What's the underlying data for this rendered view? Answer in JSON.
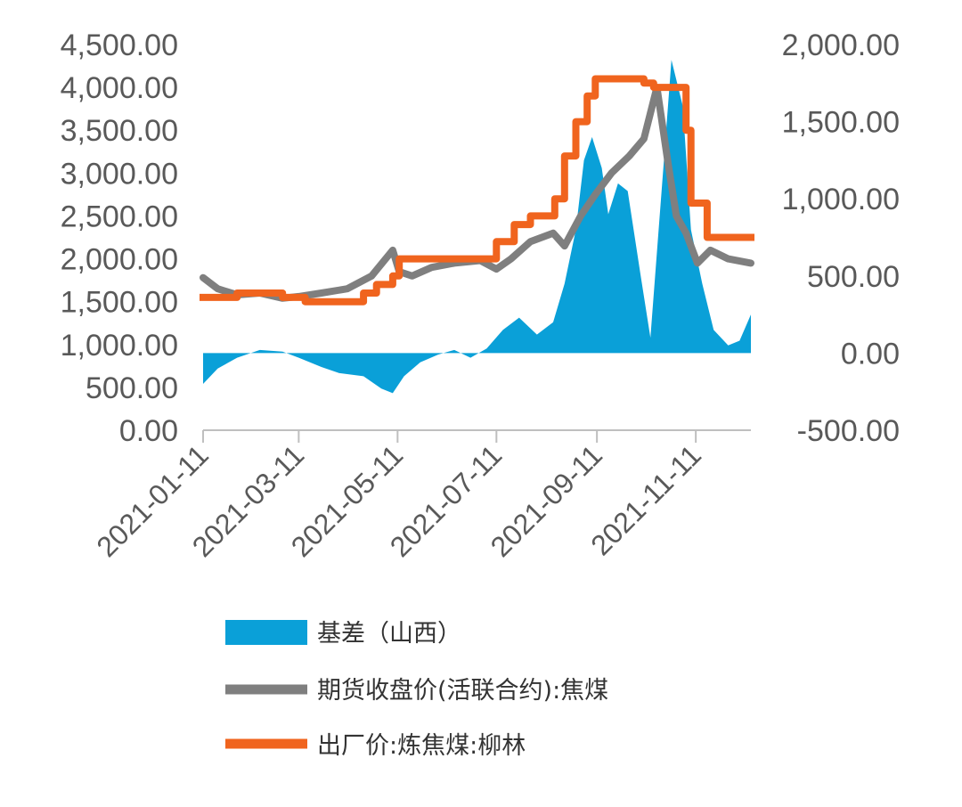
{
  "chart_data": {
    "type": "line",
    "title": "",
    "colors": {
      "basis": "#0aa0d8",
      "futures": "#7f7f7f",
      "factory": "#f0641e",
      "axis": "#bfbfbf",
      "text": "#595959"
    },
    "left_axis": {
      "range": [
        0,
        4500
      ],
      "ticks": [
        0,
        500,
        1000,
        1500,
        2000,
        2500,
        3000,
        3500,
        4000,
        4500
      ],
      "tick_labels": [
        "0.00",
        "500.00",
        "1,000.00",
        "1,500.00",
        "2,000.00",
        "2,500.00",
        "3,000.00",
        "3,500.00",
        "4,000.00",
        "4,500.00"
      ]
    },
    "right_axis": {
      "range": [
        -500,
        2000
      ],
      "ticks": [
        -500,
        0,
        500,
        1000,
        1500,
        2000
      ],
      "tick_labels": [
        "-500.00",
        "0.00",
        "500.00",
        "1,000.00",
        "1,500.00",
        "2,000.00"
      ]
    },
    "x_axis": {
      "range": [
        "2021-01-11",
        "2021-12-15"
      ],
      "tick_labels": [
        "2021-01-11",
        "2021-03-11",
        "2021-05-11",
        "2021-07-11",
        "2021-09-11",
        "2021-11-11"
      ]
    },
    "legend": {
      "position": "bottom",
      "entries": [
        "基差（山西）",
        "期货收盘价(活联合约):焦煤",
        "出厂价:炼焦煤:柳林"
      ]
    },
    "series": [
      {
        "name": "基差（山西）",
        "axis": "right",
        "style": "area",
        "points": [
          [
            "2021-01-11",
            -200
          ],
          [
            "2021-01-20",
            -100
          ],
          [
            "2021-02-01",
            -30
          ],
          [
            "2021-02-15",
            20
          ],
          [
            "2021-03-01",
            10
          ],
          [
            "2021-03-11",
            -30
          ],
          [
            "2021-03-25",
            -90
          ],
          [
            "2021-04-05",
            -130
          ],
          [
            "2021-04-20",
            -150
          ],
          [
            "2021-05-01",
            -230
          ],
          [
            "2021-05-08",
            -260
          ],
          [
            "2021-05-15",
            -150
          ],
          [
            "2021-05-25",
            -60
          ],
          [
            "2021-06-05",
            -10
          ],
          [
            "2021-06-15",
            20
          ],
          [
            "2021-06-25",
            -30
          ],
          [
            "2021-07-05",
            30
          ],
          [
            "2021-07-15",
            150
          ],
          [
            "2021-07-25",
            230
          ],
          [
            "2021-08-05",
            120
          ],
          [
            "2021-08-15",
            200
          ],
          [
            "2021-08-22",
            450
          ],
          [
            "2021-08-29",
            800
          ],
          [
            "2021-09-03",
            1250
          ],
          [
            "2021-09-08",
            1400
          ],
          [
            "2021-09-14",
            1200
          ],
          [
            "2021-09-18",
            900
          ],
          [
            "2021-09-24",
            1100
          ],
          [
            "2021-09-30",
            1050
          ],
          [
            "2021-10-08",
            500
          ],
          [
            "2021-10-14",
            100
          ],
          [
            "2021-10-22",
            1200
          ],
          [
            "2021-10-27",
            1900
          ],
          [
            "2021-11-03",
            1600
          ],
          [
            "2021-11-08",
            800
          ],
          [
            "2021-11-15",
            450
          ],
          [
            "2021-11-22",
            150
          ],
          [
            "2021-12-01",
            50
          ],
          [
            "2021-12-08",
            80
          ],
          [
            "2021-12-15",
            250
          ]
        ]
      },
      {
        "name": "期货收盘价(活联合约):焦煤",
        "axis": "left",
        "style": "line",
        "points": [
          [
            "2021-01-11",
            1780
          ],
          [
            "2021-01-20",
            1650
          ],
          [
            "2021-02-01",
            1580
          ],
          [
            "2021-02-15",
            1600
          ],
          [
            "2021-03-01",
            1540
          ],
          [
            "2021-03-11",
            1560
          ],
          [
            "2021-03-25",
            1600
          ],
          [
            "2021-04-10",
            1650
          ],
          [
            "2021-04-25",
            1800
          ],
          [
            "2021-05-08",
            2100
          ],
          [
            "2021-05-12",
            1850
          ],
          [
            "2021-05-20",
            1800
          ],
          [
            "2021-06-01",
            1900
          ],
          [
            "2021-06-15",
            1950
          ],
          [
            "2021-07-01",
            1980
          ],
          [
            "2021-07-11",
            1880
          ],
          [
            "2021-07-20",
            2000
          ],
          [
            "2021-08-01",
            2200
          ],
          [
            "2021-08-15",
            2300
          ],
          [
            "2021-08-22",
            2150
          ],
          [
            "2021-09-01",
            2500
          ],
          [
            "2021-09-10",
            2750
          ],
          [
            "2021-09-20",
            3000
          ],
          [
            "2021-10-01",
            3200
          ],
          [
            "2021-10-10",
            3400
          ],
          [
            "2021-10-18",
            4000
          ],
          [
            "2021-10-25",
            3100
          ],
          [
            "2021-10-30",
            2500
          ],
          [
            "2021-11-05",
            2300
          ],
          [
            "2021-11-12",
            1950
          ],
          [
            "2021-11-20",
            2100
          ],
          [
            "2021-12-01",
            2000
          ],
          [
            "2021-12-15",
            1950
          ]
        ]
      },
      {
        "name": "出厂价:炼焦煤:柳林",
        "axis": "left",
        "style": "step",
        "points": [
          [
            "2021-01-11",
            1550
          ],
          [
            "2021-02-01",
            1600
          ],
          [
            "2021-03-01",
            1550
          ],
          [
            "2021-03-15",
            1500
          ],
          [
            "2021-04-20",
            1600
          ],
          [
            "2021-04-28",
            1700
          ],
          [
            "2021-05-08",
            1800
          ],
          [
            "2021-05-12",
            2000
          ],
          [
            "2021-06-10",
            2000
          ],
          [
            "2021-07-01",
            2000
          ],
          [
            "2021-07-11",
            2200
          ],
          [
            "2021-07-22",
            2400
          ],
          [
            "2021-08-01",
            2500
          ],
          [
            "2021-08-16",
            2700
          ],
          [
            "2021-08-22",
            3200
          ],
          [
            "2021-08-29",
            3600
          ],
          [
            "2021-09-05",
            3900
          ],
          [
            "2021-09-10",
            4100
          ],
          [
            "2021-10-10",
            4050
          ],
          [
            "2021-10-16",
            4000
          ],
          [
            "2021-11-05",
            3500
          ],
          [
            "2021-11-08",
            2650
          ],
          [
            "2021-11-18",
            2250
          ],
          [
            "2021-12-15",
            2250
          ]
        ]
      }
    ]
  }
}
